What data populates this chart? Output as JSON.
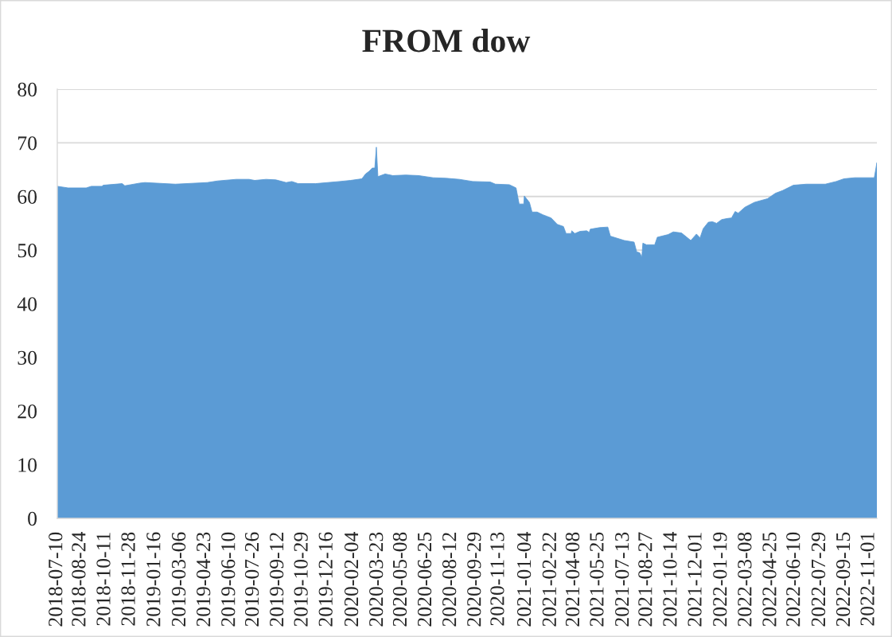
{
  "chart_data": {
    "type": "area",
    "title": "FROM dow",
    "x": [
      "2018-07-10",
      "2018-07-31",
      "2018-09-04",
      "2018-09-14",
      "2018-10-05",
      "2018-10-07",
      "2018-11-13",
      "2018-11-18",
      "2018-12-17",
      "2018-12-27",
      "2019-02-24",
      "2019-04-27",
      "2019-05-17",
      "2019-06-22",
      "2019-07-17",
      "2019-07-28",
      "2019-08-19",
      "2019-09-07",
      "2019-09-27",
      "2019-10-08",
      "2019-10-20",
      "2019-11-23",
      "2020-01-09",
      "2020-01-30",
      "2020-02-21",
      "2020-02-28",
      "2020-03-06",
      "2020-03-12",
      "2020-03-17",
      "2020-03-20",
      "2020-03-23",
      "2020-04-06",
      "2020-04-21",
      "2020-05-16",
      "2020-06-10",
      "2020-07-08",
      "2020-08-02",
      "2020-08-28",
      "2020-09-23",
      "2020-10-27",
      "2020-11-06",
      "2020-12-03",
      "2020-12-16",
      "2020-12-22",
      "2020-12-31",
      "2021-01-01",
      "2021-01-11",
      "2021-01-16",
      "2021-01-26",
      "2021-02-06",
      "2021-02-22",
      "2021-03-06",
      "2021-03-18",
      "2021-03-23",
      "2021-04-02",
      "2021-04-03",
      "2021-04-09",
      "2021-04-19",
      "2021-05-02",
      "2021-05-07",
      "2021-05-09",
      "2021-05-27",
      "2021-06-12",
      "2021-06-17",
      "2021-07-04",
      "2021-07-14",
      "2021-08-02",
      "2021-08-07",
      "2021-08-13",
      "2021-08-17",
      "2021-08-19",
      "2021-08-26",
      "2021-09-11",
      "2021-09-16",
      "2021-10-07",
      "2021-10-17",
      "2021-11-02",
      "2021-11-20",
      "2021-12-01",
      "2021-12-08",
      "2021-12-14",
      "2021-12-24",
      "2022-01-01",
      "2022-01-09",
      "2022-01-19",
      "2022-01-30",
      "2022-02-07",
      "2022-02-14",
      "2022-02-20",
      "2022-03-05",
      "2022-03-23",
      "2022-04-18",
      "2022-05-03",
      "2022-05-17",
      "2022-06-07",
      "2022-07-02",
      "2022-08-08",
      "2022-08-29",
      "2022-09-13",
      "2022-10-04",
      "2022-11-03",
      "2022-11-11",
      "2022-11-16"
    ],
    "series": [
      {
        "color": "#5b9bd5",
        "values": [
          61.9,
          61.6,
          61.6,
          61.9,
          61.9,
          62.1,
          62.4,
          62.0,
          62.5,
          62.6,
          62.3,
          62.6,
          62.9,
          63.2,
          63.2,
          63.0,
          63.2,
          63.1,
          62.6,
          62.8,
          62.4,
          62.4,
          62.8,
          63.0,
          63.3,
          64.2,
          64.7,
          65.3,
          65.3,
          69.2,
          63.7,
          64.2,
          63.9,
          64.0,
          63.9,
          63.5,
          63.4,
          63.2,
          62.8,
          62.7,
          62.3,
          62.2,
          61.6,
          58.6,
          58.6,
          60.1,
          58.9,
          57.1,
          57.1,
          56.6,
          56.0,
          54.8,
          54.4,
          53.1,
          53.1,
          53.6,
          53.1,
          53.5,
          53.6,
          53.3,
          53.9,
          54.2,
          54.3,
          52.6,
          52.1,
          51.8,
          51.5,
          49.7,
          49.5,
          48.7,
          51.3,
          51.0,
          51.0,
          52.4,
          52.9,
          53.4,
          53.2,
          51.8,
          53.0,
          52.3,
          54.0,
          55.2,
          55.3,
          55.0,
          55.7,
          55.9,
          56.0,
          57.2,
          56.9,
          58.0,
          58.9,
          59.6,
          60.6,
          61.1,
          62.1,
          62.3,
          62.3,
          62.8,
          63.3,
          63.5,
          63.5,
          63.5,
          66.3
        ]
      }
    ],
    "xlim": [
      "2018-07-10",
      "2022-11-16"
    ],
    "xticks": [
      "2018-07-10",
      "2018-08-24",
      "2018-10-11",
      "2018-11-28",
      "2019-01-16",
      "2019-03-06",
      "2019-04-23",
      "2019-06-10",
      "2019-07-26",
      "2019-09-12",
      "2019-10-29",
      "2019-12-16",
      "2020-02-04",
      "2020-03-23",
      "2020-05-08",
      "2020-06-25",
      "2020-08-12",
      "2020-09-29",
      "2020-11-13",
      "2021-01-04",
      "2021-02-22",
      "2021-04-08",
      "2021-05-25",
      "2021-07-13",
      "2021-08-27",
      "2021-10-14",
      "2021-12-01",
      "2022-01-19",
      "2022-03-08",
      "2022-04-25",
      "2022-06-10",
      "2022-07-29",
      "2022-09-15",
      "2022-11-01"
    ],
    "ylim": [
      0,
      80
    ],
    "yticks": [
      0,
      10,
      20,
      30,
      40,
      50,
      60,
      70,
      80
    ],
    "grid": "y"
  }
}
